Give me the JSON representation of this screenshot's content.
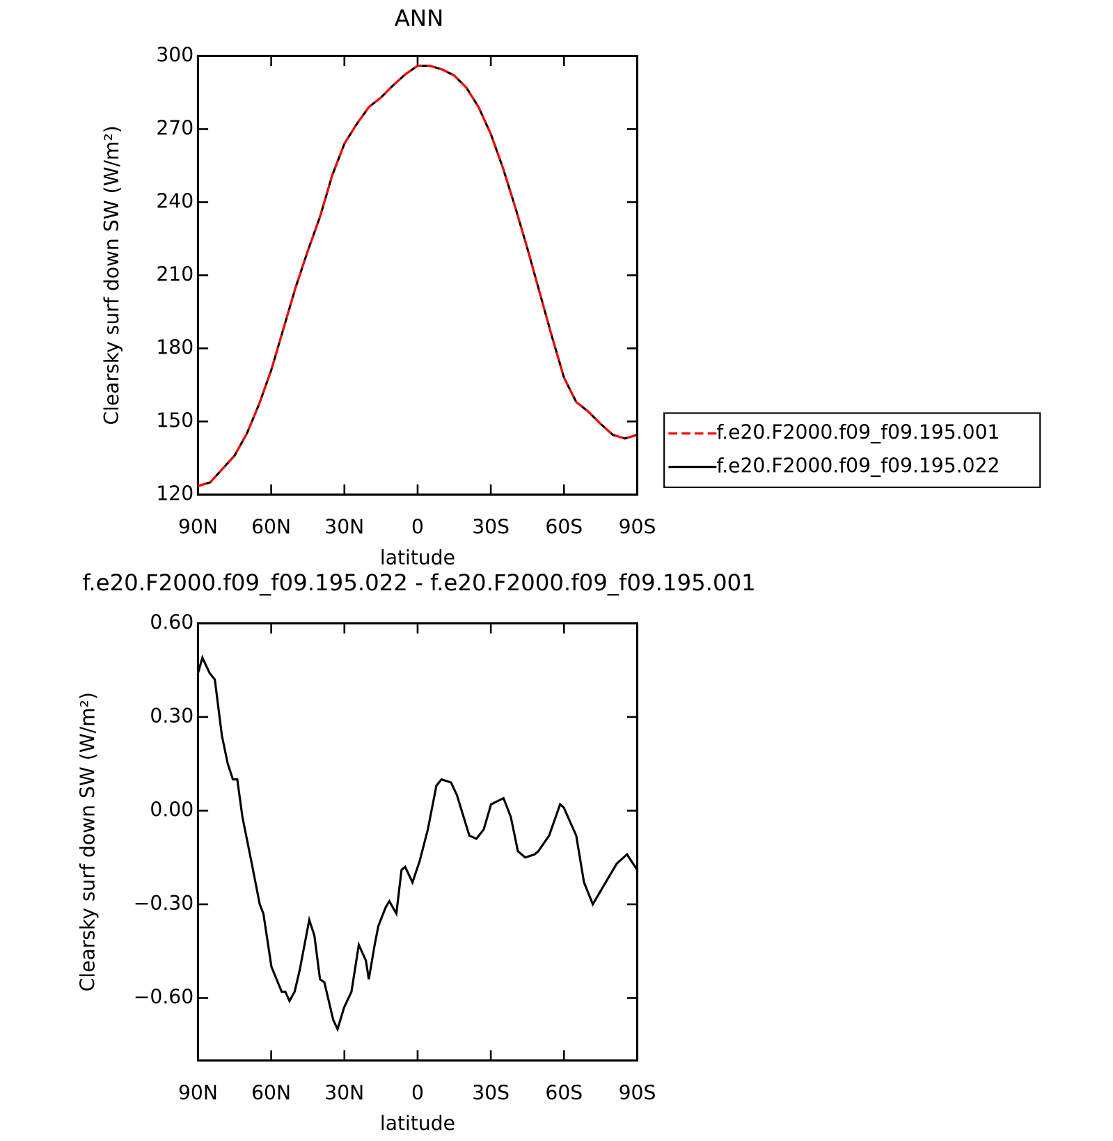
{
  "chart_data": [
    {
      "type": "line",
      "title": "ANN",
      "x_label": "latitude",
      "y_label": "Clearsky surf down SW (W/m²)",
      "x": [
        90,
        85,
        80,
        75,
        70,
        65,
        60,
        55,
        50,
        45,
        40,
        35,
        30,
        25,
        20,
        15,
        10,
        5,
        0,
        -5,
        -10,
        -15,
        -20,
        -25,
        -30,
        -35,
        -40,
        -45,
        -50,
        -55,
        -60,
        -65,
        -70,
        -75,
        -80,
        -85,
        -90
      ],
      "series": [
        {
          "name": "f.e20.F2000.f09_f09.195.001",
          "color": "#ff0000",
          "dashed": true,
          "values": [
            123.5,
            125,
            130.5,
            136,
            145,
            157,
            171,
            188,
            205,
            220,
            234,
            251,
            264,
            272,
            279,
            283,
            288,
            292.5,
            296,
            296,
            294.5,
            292,
            287,
            279,
            268,
            254,
            238,
            221,
            203,
            185,
            168,
            158,
            154,
            149,
            144.5,
            143,
            144.5
          ]
        },
        {
          "name": "f.e20.F2000.f09_f09.195.022",
          "color": "#000000",
          "dashed": false,
          "values": [
            123.5,
            125,
            130.5,
            136,
            145,
            157,
            171,
            188,
            205,
            220,
            234,
            251,
            264,
            272,
            279,
            283,
            288,
            292.5,
            296,
            296,
            294.5,
            292,
            287,
            279,
            268,
            254,
            238,
            221,
            203,
            185,
            168,
            158,
            154,
            149,
            144.5,
            143,
            144.5
          ]
        }
      ],
      "xlim": [
        90,
        -90
      ],
      "xticks": [
        {
          "value": 90,
          "label": "90N"
        },
        {
          "value": 60,
          "label": "60N"
        },
        {
          "value": 30,
          "label": "30N"
        },
        0,
        {
          "value": -30,
          "label": "30S"
        },
        {
          "value": -60,
          "label": "60S"
        },
        {
          "value": -90,
          "label": "90S"
        }
      ],
      "ylim": [
        120,
        300
      ],
      "yticks": [
        120,
        150,
        180,
        210,
        240,
        270,
        300
      ],
      "legend": "right"
    },
    {
      "type": "line",
      "title": "f.e20.F2000.f09_f09.195.022 - f.e20.F2000.f09_f09.195.001",
      "x_label": "latitude",
      "y_label": "Clearsky surf down SW (W/m²)",
      "x": [
        90,
        88.2,
        85.2,
        83.1,
        80.2,
        77.8,
        75.7,
        73.9,
        71.8,
        68.2,
        64.7,
        63.2,
        59.9,
        55.7,
        54.2,
        52.5,
        50.4,
        48.3,
        44.4,
        42.3,
        40.0,
        38.2,
        34.6,
        32.8,
        30.1,
        27.1,
        24.1,
        21.2,
        20.0,
        17.6,
        16.1,
        13.1,
        11.6,
        8.7,
        6.6,
        5.1,
        2.1,
        -0.9,
        -4.2,
        -7.7,
        -9.8,
        -13.7,
        -16.1,
        -21.2,
        -24.1,
        -27.1,
        -30.1,
        -35.2,
        -38.2,
        -41.1,
        -44.1,
        -48.0,
        -49.5,
        -53.9,
        -58.4,
        -59.9,
        -65.0,
        -68.2,
        -71.8,
        -76.3,
        -81.6,
        -85.8,
        -90
      ],
      "series": [
        {
          "color": "#000000",
          "dashed": false,
          "values": [
            0.44,
            0.49,
            0.44,
            0.42,
            0.24,
            0.15,
            0.1,
            0.1,
            -0.02,
            -0.16,
            -0.3,
            -0.33,
            -0.5,
            -0.58,
            -0.58,
            -0.61,
            -0.58,
            -0.51,
            -0.35,
            -0.4,
            -0.54,
            -0.55,
            -0.67,
            -0.7,
            -0.63,
            -0.58,
            -0.43,
            -0.48,
            -0.54,
            -0.43,
            -0.37,
            -0.31,
            -0.29,
            -0.33,
            -0.19,
            -0.18,
            -0.23,
            -0.16,
            -0.06,
            0.08,
            0.1,
            0.09,
            0.05,
            -0.08,
            -0.09,
            -0.06,
            0.02,
            0.04,
            -0.02,
            -0.13,
            -0.15,
            -0.14,
            -0.13,
            -0.08,
            0.02,
            0.01,
            -0.08,
            -0.23,
            -0.3,
            -0.24,
            -0.17,
            -0.14,
            -0.19
          ]
        }
      ],
      "xlim": [
        90,
        -90
      ],
      "xticks": [
        {
          "value": 90,
          "label": "90N"
        },
        {
          "value": 60,
          "label": "60N"
        },
        {
          "value": 30,
          "label": "30N"
        },
        0,
        {
          "value": -30,
          "label": "30S"
        },
        {
          "value": -60,
          "label": "60S"
        },
        {
          "value": -90,
          "label": "90S"
        }
      ],
      "ylim": [
        -0.8,
        0.6
      ],
      "yticks": [
        {
          "value": -0.6,
          "label": "−0.60"
        },
        {
          "value": -0.3,
          "label": "−0.30"
        },
        {
          "value": 0,
          "label": "0.00"
        },
        {
          "value": 0.3,
          "label": "0.30"
        },
        {
          "value": 0.6,
          "label": "0.60"
        }
      ]
    }
  ]
}
